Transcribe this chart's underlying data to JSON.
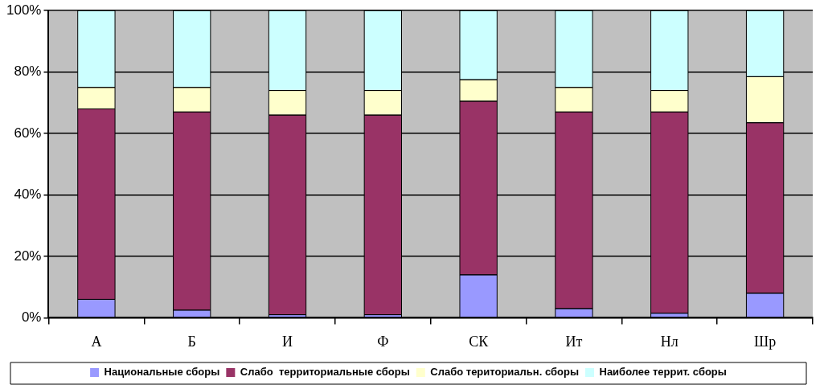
{
  "chart_data": {
    "type": "bar",
    "stacked": true,
    "categories": [
      "А",
      "Б",
      "И",
      "Ф",
      "СК",
      "Ит",
      "Нл",
      "Шр"
    ],
    "series": [
      {
        "name": "Национальные сборы",
        "color": "#9999ff",
        "values": [
          6,
          2.5,
          1,
          1,
          14,
          3,
          1.5,
          8
        ]
      },
      {
        "name": "Слабо  территориальные сборы",
        "color": "#993366",
        "values": [
          62,
          64.5,
          65,
          65,
          56.5,
          64,
          65.5,
          55.5
        ]
      },
      {
        "name": "Слабо териториальн. сборы",
        "color": "#ffffcc",
        "values": [
          7,
          8,
          8,
          8,
          7,
          8,
          7,
          15
        ]
      },
      {
        "name": "Наиболее террит. сборы",
        "color": "#ccffff",
        "values": [
          25,
          25,
          26,
          26,
          22.5,
          25,
          26,
          21.5
        ]
      }
    ],
    "ylim": [
      0,
      100
    ],
    "yticks": [
      {
        "value": 0,
        "label": "0%"
      },
      {
        "value": 20,
        "label": "20%"
      },
      {
        "value": 40,
        "label": "40%"
      },
      {
        "value": 60,
        "label": "60%"
      },
      {
        "value": 80,
        "label": "80%"
      },
      {
        "value": 100,
        "label": "100%"
      }
    ],
    "grid": "y",
    "legend": "bottom"
  }
}
